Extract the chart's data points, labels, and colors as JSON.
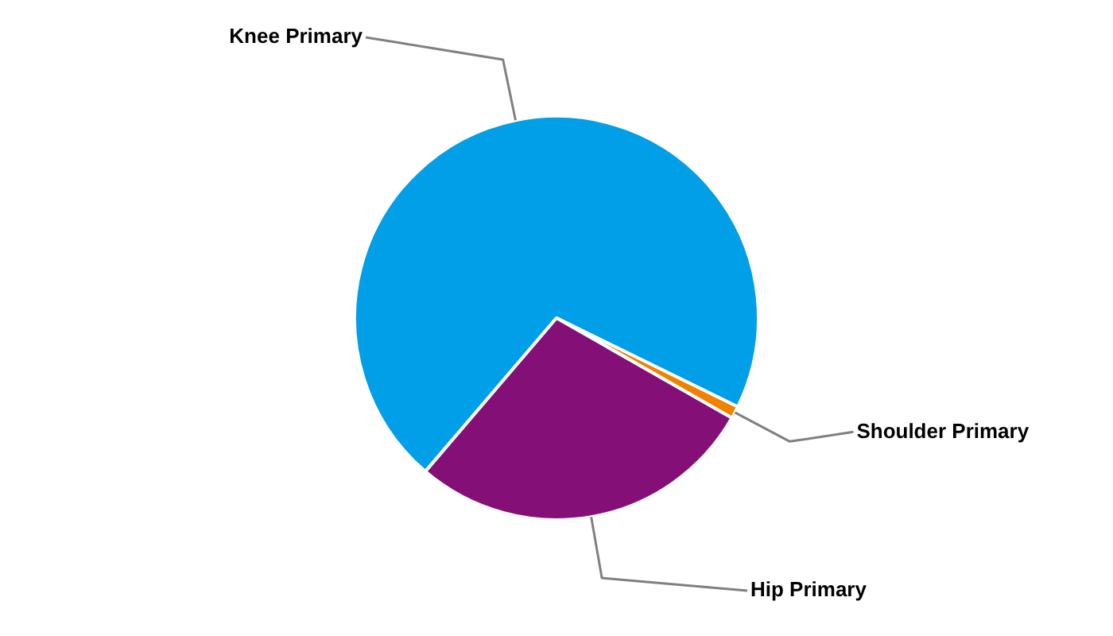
{
  "chart_data": {
    "type": "pie",
    "categories": [
      "Knee Primary",
      "Shoulder Primary",
      "Hip Primary"
    ],
    "values": [
      71,
      1,
      28
    ],
    "colors": [
      "#009fe8",
      "#f08200",
      "#841077"
    ]
  }
}
